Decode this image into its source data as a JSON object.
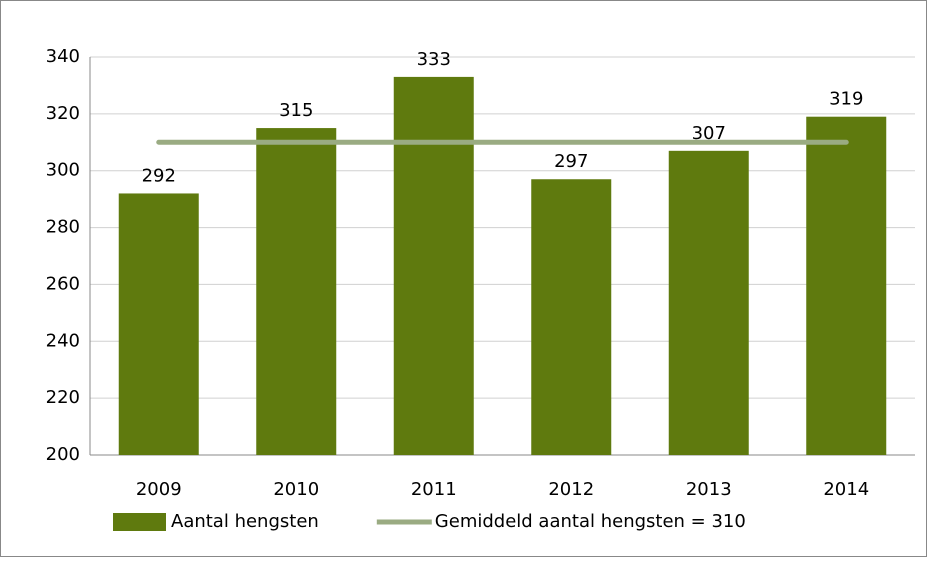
{
  "chart_data": {
    "type": "bar",
    "categories": [
      "2009",
      "2010",
      "2011",
      "2012",
      "2013",
      "2014"
    ],
    "series": [
      {
        "name": "Aantal hengsten",
        "color": "#5f7a0e",
        "values": [
          292,
          315,
          333,
          297,
          307,
          319
        ]
      },
      {
        "name": "Gemiddeld aantal hengsten = 310",
        "color": "#9aab82",
        "type": "line",
        "values": [
          310,
          310,
          310,
          310,
          310,
          310
        ]
      }
    ],
    "ylim": [
      200,
      340
    ],
    "yticks": [
      200,
      220,
      240,
      260,
      280,
      300,
      320,
      340
    ],
    "grid": true,
    "legend": "bottom"
  }
}
